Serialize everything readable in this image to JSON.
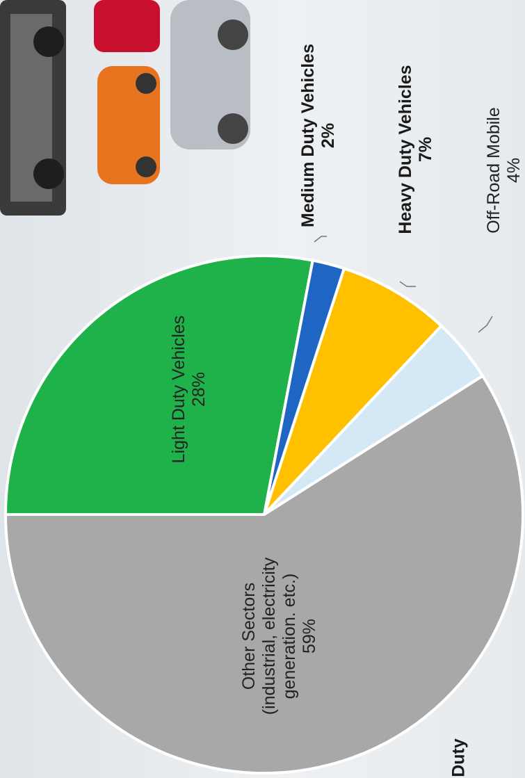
{
  "chart_data": {
    "type": "pie",
    "categories": [
      "Light Duty Vehicles",
      "Medium Duty Vehicles",
      "Heavy Duty Vehicles",
      "Off-Road Mobile",
      "Other Sectors (industrial, electricity generation. etc.)"
    ],
    "values": [
      28,
      2,
      7,
      4,
      59
    ],
    "value_labels": [
      "28%",
      "2%",
      "7%",
      "4%",
      "59%"
    ],
    "colors": [
      "#1fb24a",
      "#1f66c4",
      "#ffc000",
      "#d4e8f6",
      "#a8a8a8"
    ],
    "annotations": [
      "Duty"
    ]
  }
}
